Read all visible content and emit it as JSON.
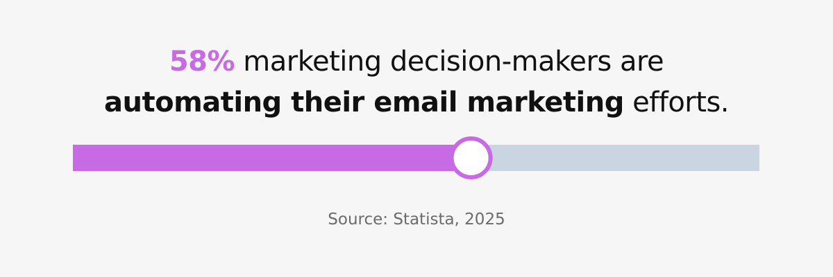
{
  "chart_data": {
    "type": "progress",
    "title_parts": [
      "marketing decision-makers are",
      "automating their email marketing",
      "efforts."
    ],
    "values": [
      58
    ],
    "value_labels": [
      "58%"
    ],
    "xlim": [
      0,
      100
    ],
    "color": "#c86ae3",
    "track_color": "#c9d5e1",
    "source": "Source: Statista, 2025"
  }
}
